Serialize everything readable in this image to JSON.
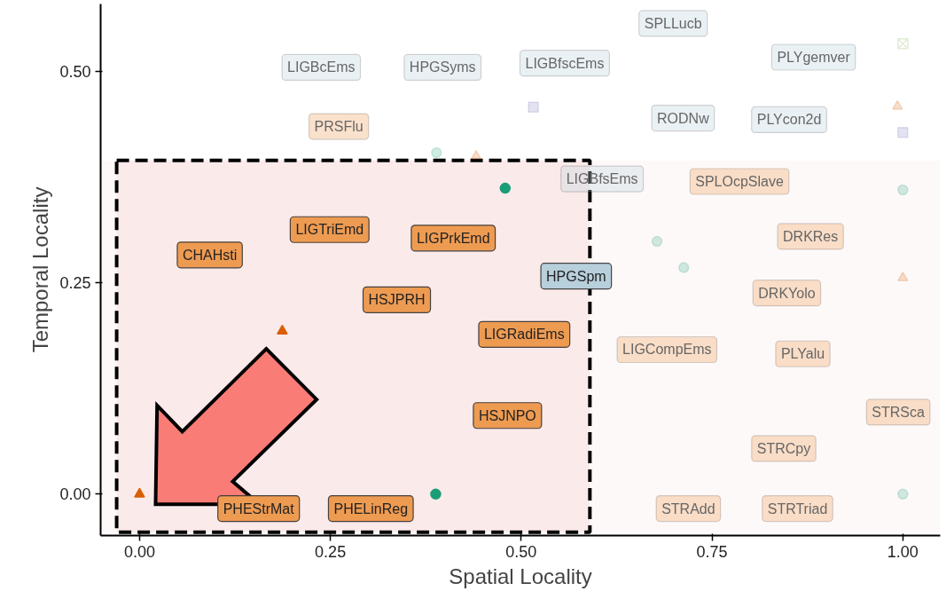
{
  "chart_data": {
    "type": "scatter",
    "xlabel": "Spatial Locality",
    "ylabel": "Temporal Locality",
    "xlim": [
      -0.051,
      1.049
    ],
    "ylim": [
      -0.049,
      0.58
    ],
    "xticks": [
      {
        "value": 0,
        "label": "0.00"
      },
      {
        "value": 0.25,
        "label": "0.25"
      },
      {
        "value": 0.5,
        "label": "0.50"
      },
      {
        "value": 0.75,
        "label": "0.75"
      },
      {
        "value": 1,
        "label": "1.00"
      }
    ],
    "yticks": [
      {
        "value": 0,
        "label": "0.00"
      },
      {
        "value": 0.25,
        "label": "0.25"
      },
      {
        "value": 0.5,
        "label": "0.50"
      }
    ],
    "series": [
      {
        "color": "#d95f02",
        "marker": "triangle",
        "x": [
          0,
          0.187,
          0.441,
          0.993,
          1.0
        ],
        "values": [
          0.0,
          0.193,
          0.4,
          0.459,
          0.256
        ]
      },
      {
        "color": "#1b9e77",
        "marker": "circle",
        "x": [
          0.388,
          0.479,
          0.389,
          0.678,
          0.713,
          1.0,
          1.0
        ],
        "values": [
          0.0,
          0.362,
          0.404,
          0.299,
          0.268,
          0.36,
          0.0
        ]
      },
      {
        "color": "#7570b3",
        "marker": "square",
        "x": [
          0.516,
          1.0
        ],
        "values": [
          0.458,
          0.428
        ]
      },
      {
        "color": "#66a61e",
        "marker": "cross",
        "x": [
          1.0
        ],
        "values": [
          0.533
        ]
      }
    ],
    "bands": [
      {
        "axis": "x",
        "from": -0.03,
        "to": 0.59,
        "color": "#fbeaea"
      },
      {
        "axis": "y",
        "from": -0.045,
        "to": 0.395,
        "color": "#fbeaea"
      }
    ],
    "annotations": [
      "LIGBcEms",
      "HPGSyms",
      "LIGBfscEms",
      "SPLLucb",
      "PLYgemver",
      "PRSFlu",
      "RODNw",
      "PLYcon2d",
      "LIGBfsEms",
      "SPLOcpSlave",
      "CHAHsti",
      "LIGTriEmd",
      "LIGPrkEmd",
      "DRKRes",
      "HPGSpm",
      "HSJPRH",
      "DRKYolo",
      "LIGRadiEms",
      "LIGCompEms",
      "PLYalu",
      "HSJNPO",
      "STRSca",
      "STRCpy",
      "PHEStrMat",
      "PHELinReg",
      "STRAdd",
      "STRTriad"
    ]
  }
}
